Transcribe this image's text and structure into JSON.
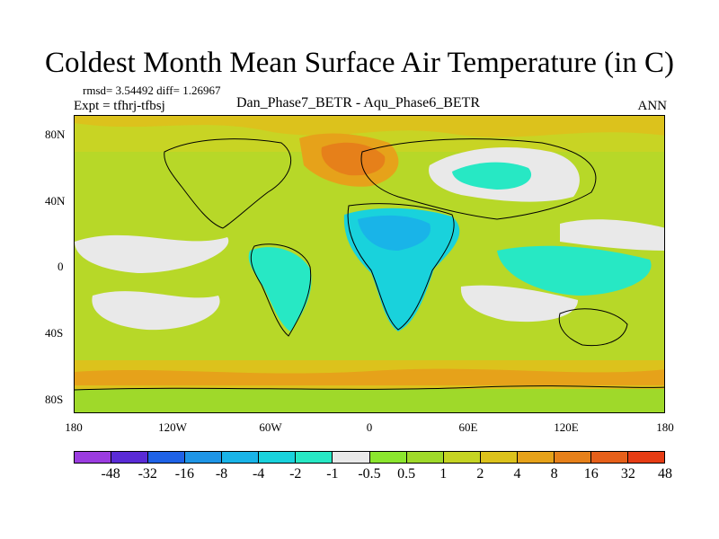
{
  "title": "Coldest Month Mean Surface Air Temperature (in C)",
  "stats": "rmsd= 3.54492 diff= 1.26967",
  "expt": "Expt = tfhrj-tfbsj",
  "subtitle": "Dan_Phase7_BETR - Aqu_Phase6_BETR",
  "season": "ANN",
  "lat_labels": [
    "80N",
    "40N",
    "0",
    "40S",
    "80S"
  ],
  "lon_labels": [
    "180",
    "120W",
    "60W",
    "0",
    "60E",
    "120E",
    "180"
  ],
  "colorbar": {
    "colors": [
      "#9b3ce0",
      "#5a2bd6",
      "#1f62e6",
      "#1f95e6",
      "#19b4e8",
      "#19d2dc",
      "#27e8c4",
      "#e9e9e9",
      "#8be62e",
      "#9fd92a",
      "#c5d423",
      "#dcc21c",
      "#e6a21a",
      "#e6801a",
      "#e6601a",
      "#e63c14"
    ],
    "labels": [
      "-48",
      "-32",
      "-16",
      "-8",
      "-4",
      "-2",
      "-1",
      "-0.5",
      "0.5",
      "1",
      "2",
      "4",
      "8",
      "16",
      "32",
      "48"
    ]
  }
}
